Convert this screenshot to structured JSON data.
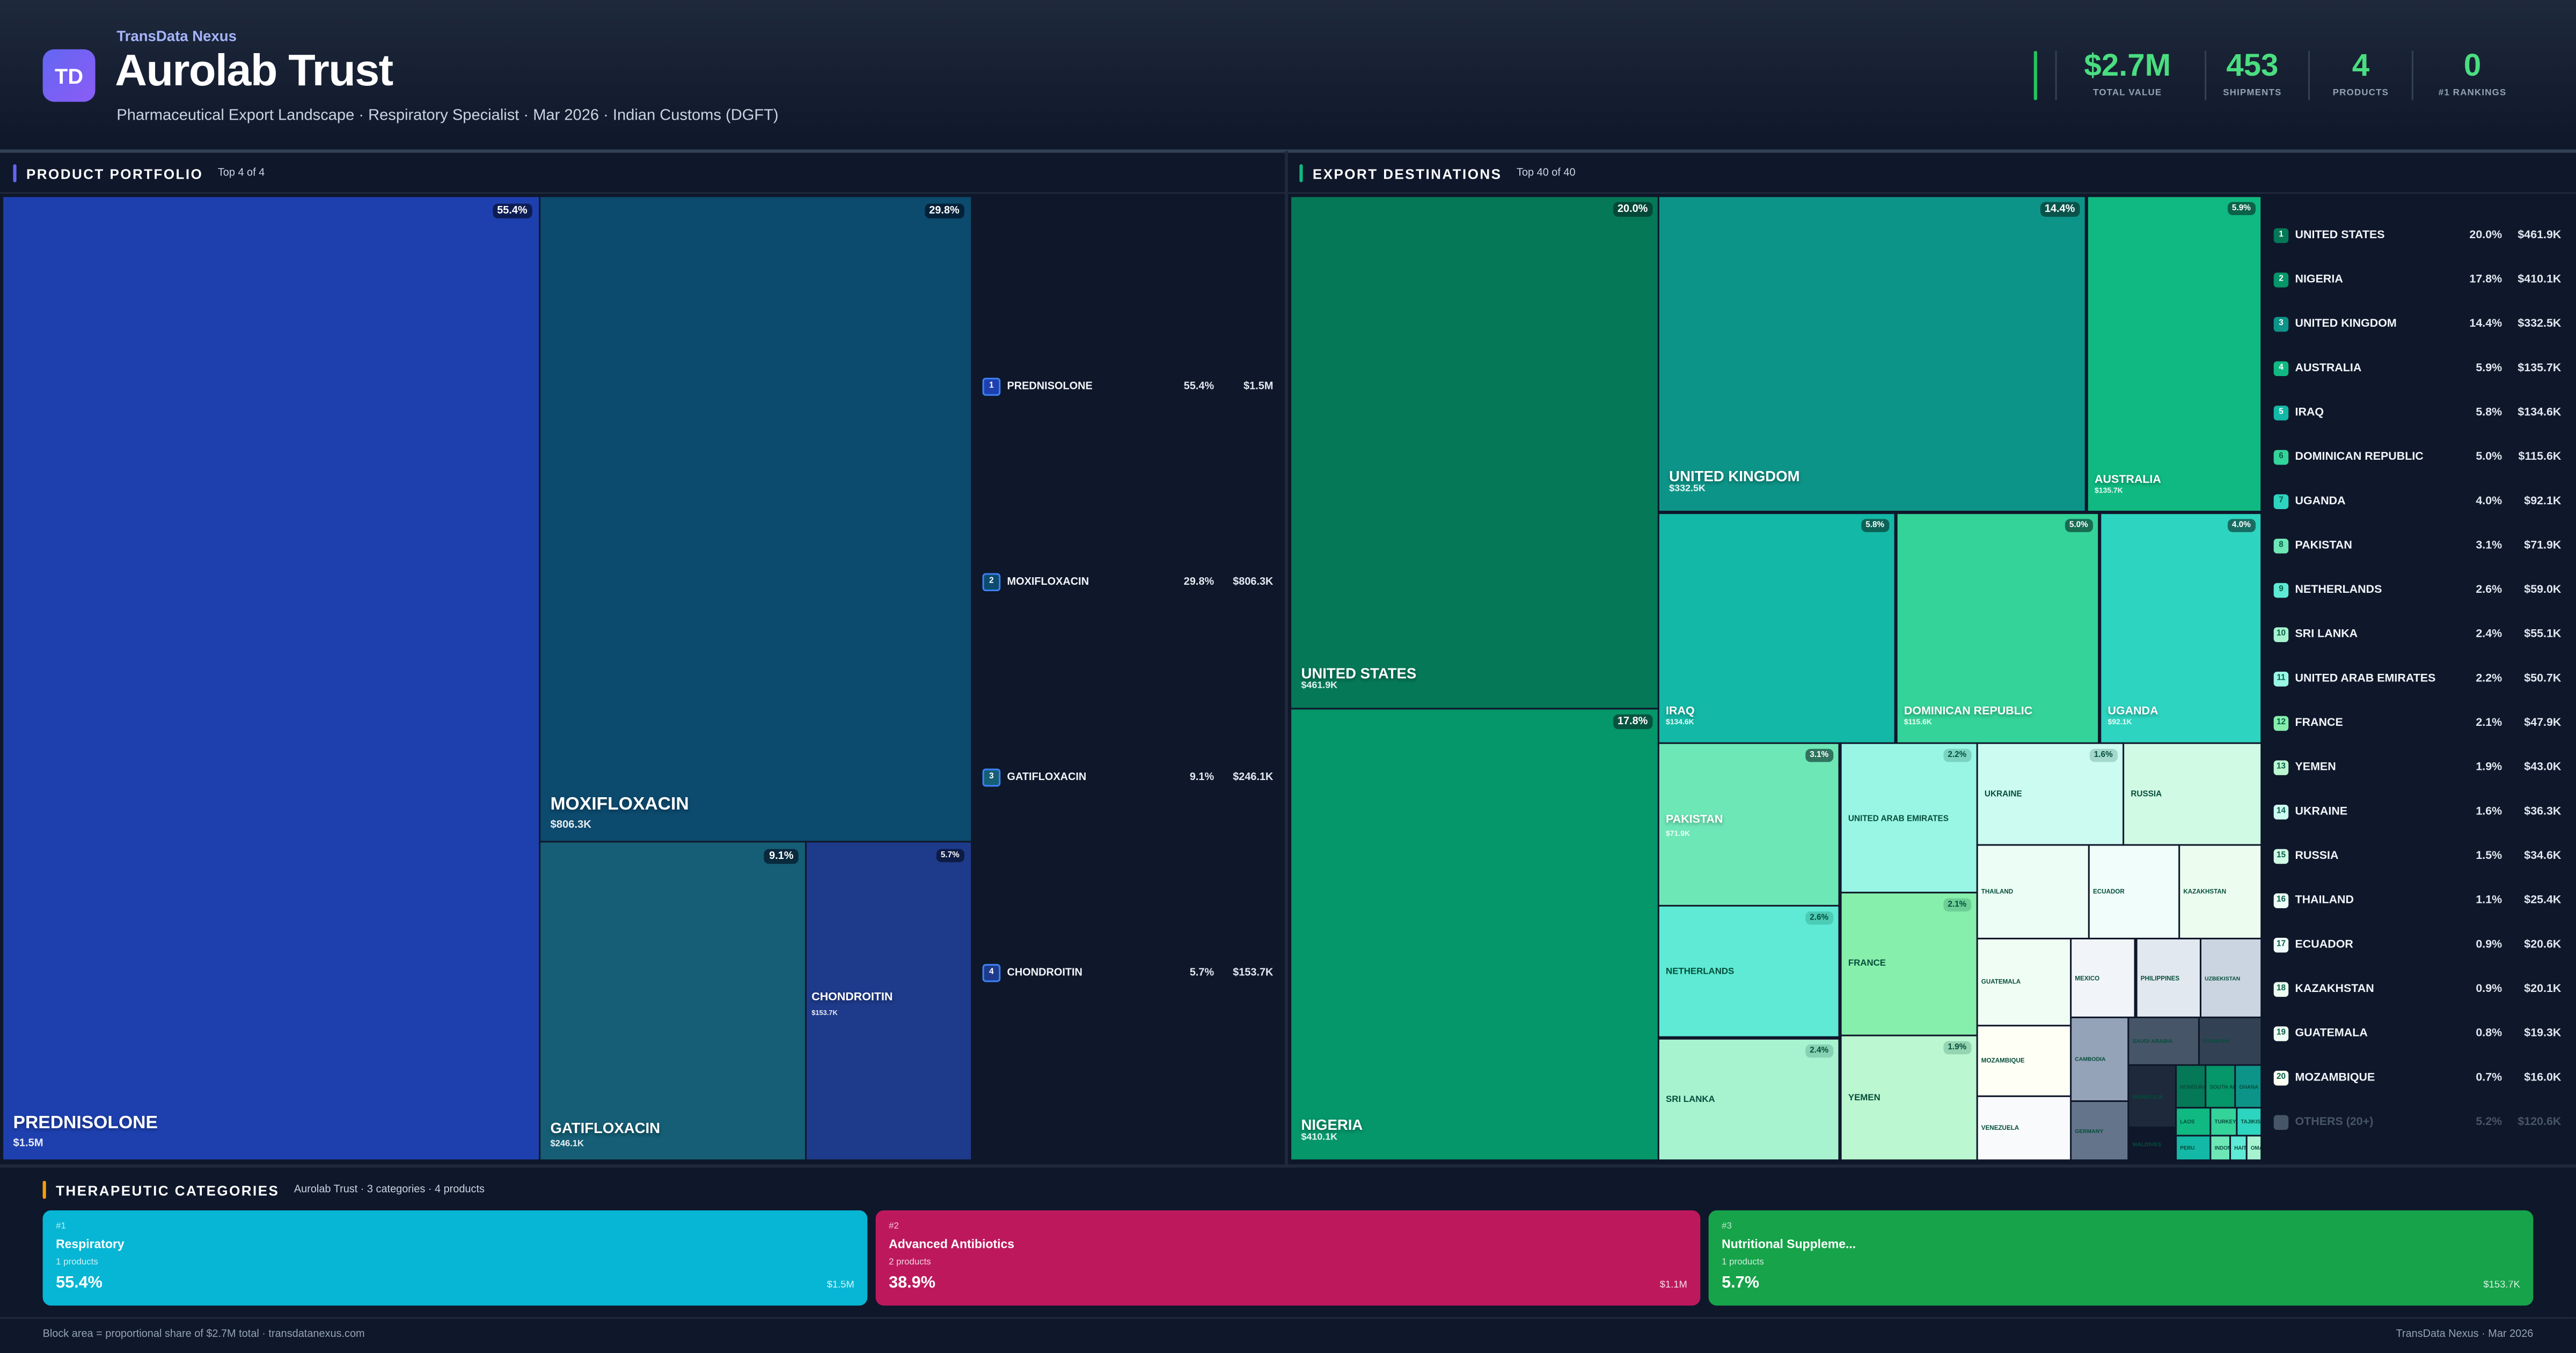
{
  "header": {
    "brand": "TransData Nexus",
    "logo_text": "TD",
    "title": "Aurolab Trust",
    "subtitle": "Pharmaceutical Export Landscape · Respiratory Specialist · Mar 2026 · Indian Customs (DGFT)",
    "stats": [
      {
        "value": "$2.7M",
        "label": "TOTAL VALUE"
      },
      {
        "value": "453",
        "label": "SHIPMENTS"
      },
      {
        "value": "4",
        "label": "PRODUCTS"
      },
      {
        "value": "0",
        "label": "#1 RANKINGS"
      }
    ],
    "accent_color": "#4ade80"
  },
  "products_section": {
    "title": "PRODUCT PORTFOLIO",
    "subtitle": "Top 4 of 4",
    "accent_color": "#6366f1"
  },
  "destinations_section": {
    "title": "EXPORT DESTINATIONS",
    "subtitle": "Top 40 of 40",
    "accent_color": "#10b981"
  },
  "categories_section": {
    "title": "THERAPEUTIC CATEGORIES",
    "subtitle": "Aurolab Trust · 3 categories · 4 products",
    "accent_color": "#f59e0b"
  },
  "chart_data": [
    {
      "type": "treemap",
      "title": "PRODUCT PORTFOLIO",
      "items": [
        {
          "rank": "1",
          "name": "PREDNISOLONE",
          "share": "55.4%",
          "value": "$1.5M",
          "color": "#1e40af"
        },
        {
          "rank": "2",
          "name": "MOXIFLOXACIN",
          "share": "29.8%",
          "value": "$806.3K",
          "color": "#0c4a6e"
        },
        {
          "rank": "3",
          "name": "GATIFLOXACIN",
          "share": "9.1%",
          "value": "$246.1K",
          "color": "#155e75"
        },
        {
          "rank": "4",
          "name": "CHONDROITIN",
          "share": "5.7%",
          "value": "$153.7K",
          "color": "#1e3a8a"
        }
      ]
    },
    {
      "type": "treemap",
      "title": "EXPORT DESTINATIONS",
      "items": [
        {
          "name": "UNITED STATES",
          "share": "20.0%",
          "value": "$461.9K",
          "color": "#047857"
        },
        {
          "name": "NIGERIA",
          "share": "17.8%",
          "value": "$410.1K",
          "color": "#059669"
        },
        {
          "name": "UNITED KINGDOM",
          "share": "14.4%",
          "value": "$332.5K",
          "color": "#0d9488"
        },
        {
          "name": "AUSTRALIA",
          "share": "5.9%",
          "value": "$135.7K",
          "color": "#10b981"
        },
        {
          "name": "IRAQ",
          "share": "5.8%",
          "value": "$134.6K",
          "color": "#14b8a6"
        },
        {
          "name": "DOMINICAN REPUBLIC",
          "share": "5.0%",
          "value": "$115.6K",
          "color": "#34d399"
        },
        {
          "name": "UGANDA",
          "share": "4.0%",
          "value": "$92.1K",
          "color": "#2dd4bf"
        },
        {
          "name": "PAKISTAN",
          "share": "3.1%",
          "value": "$71.9K",
          "color": "#6ee7b7"
        },
        {
          "name": "NETHERLANDS",
          "share": "2.6%",
          "color": "#5eead4"
        },
        {
          "name": "SRI LANKA",
          "share": "2.4%",
          "color": "#a7f3d0"
        },
        {
          "name": "UNITED ARAB EMIRATES",
          "share": "2.2%",
          "color": "#99f6e4"
        },
        {
          "name": "FRANCE",
          "share": "2.1%",
          "color": "#86efac"
        },
        {
          "name": "YEMEN",
          "share": "1.9%",
          "color": "#bbf7d0"
        },
        {
          "name": "UKRAINE",
          "share": "1.6%",
          "color": "#ccfbf1"
        },
        {
          "name": "RUSSIA",
          "color": "#d1fae5"
        },
        {
          "name": "THAILAND",
          "color": "#ecfdf5"
        },
        {
          "name": "ECUADOR",
          "color": "#f0fdfa"
        },
        {
          "name": "KAZAKHSTAN",
          "color": "#ecfdf0"
        },
        {
          "name": "GUATEMALA",
          "color": "#f0fdf4"
        },
        {
          "name": "MOZAMBIQUE",
          "color": "#fefff5"
        },
        {
          "name": "VENEZUELA",
          "color": "#f8fafc"
        },
        {
          "name": "MEXICO",
          "color": "#f1f5f9"
        },
        {
          "name": "PHILIPPINES",
          "color": "#e2e8f0"
        },
        {
          "name": "UZBEKISTAN",
          "color": "#cbd5e1"
        },
        {
          "name": "CAMBODIA",
          "color": "#94a3b8"
        },
        {
          "name": "GERMANY",
          "color": "#64748b"
        },
        {
          "name": "SAUDI ARABIA",
          "color": "#475569"
        },
        {
          "name": "ESWATINI",
          "color": "#334155"
        },
        {
          "name": "MONGOLIA",
          "color": "#1e293b"
        },
        {
          "name": "MALDIVES",
          "color": "#0f172a"
        },
        {
          "name": "HONDURAS",
          "color": "#047857"
        },
        {
          "name": "SOUTH AFRI...",
          "color": "#059669"
        },
        {
          "name": "GHANA",
          "color": "#0d9488"
        },
        {
          "name": "LAOS",
          "color": "#10b981"
        },
        {
          "name": "TURKEY",
          "color": "#34d399"
        },
        {
          "name": "TAJIKISTAN",
          "color": "#2dd4bf"
        },
        {
          "name": "PERU",
          "color": "#14b8a6"
        },
        {
          "name": "INDONESIA",
          "color": "#6ee7b7"
        },
        {
          "name": "HAITI",
          "color": "#5eead4"
        },
        {
          "name": "OMAN",
          "color": "#a7f3d0"
        }
      ]
    }
  ],
  "destination_list": [
    {
      "rank": "1",
      "name": "UNITED STATES",
      "share": "20.0%",
      "value": "$461.9K",
      "color": "#047857"
    },
    {
      "rank": "2",
      "name": "NIGERIA",
      "share": "17.8%",
      "value": "$410.1K",
      "color": "#059669"
    },
    {
      "rank": "3",
      "name": "UNITED KINGDOM",
      "share": "14.4%",
      "value": "$332.5K",
      "color": "#0d9488"
    },
    {
      "rank": "4",
      "name": "AUSTRALIA",
      "share": "5.9%",
      "value": "$135.7K",
      "color": "#10b981"
    },
    {
      "rank": "5",
      "name": "IRAQ",
      "share": "5.8%",
      "value": "$134.6K",
      "color": "#14b8a6"
    },
    {
      "rank": "6",
      "name": "DOMINICAN REPUBLIC",
      "share": "5.0%",
      "value": "$115.6K",
      "color": "#34d399"
    },
    {
      "rank": "7",
      "name": "UGANDA",
      "share": "4.0%",
      "value": "$92.1K",
      "color": "#2dd4bf"
    },
    {
      "rank": "8",
      "name": "PAKISTAN",
      "share": "3.1%",
      "value": "$71.9K",
      "color": "#6ee7b7"
    },
    {
      "rank": "9",
      "name": "NETHERLANDS",
      "share": "2.6%",
      "value": "$59.0K",
      "color": "#5eead4"
    },
    {
      "rank": "10",
      "name": "SRI LANKA",
      "share": "2.4%",
      "value": "$55.1K",
      "color": "#a7f3d0"
    },
    {
      "rank": "11",
      "name": "UNITED ARAB EMIRATES",
      "share": "2.2%",
      "value": "$50.7K",
      "color": "#99f6e4"
    },
    {
      "rank": "12",
      "name": "FRANCE",
      "share": "2.1%",
      "value": "$47.9K",
      "color": "#86efac"
    },
    {
      "rank": "13",
      "name": "YEMEN",
      "share": "1.9%",
      "value": "$43.0K",
      "color": "#bbf7d0"
    },
    {
      "rank": "14",
      "name": "UKRAINE",
      "share": "1.6%",
      "value": "$36.3K",
      "color": "#ccfbf1"
    },
    {
      "rank": "15",
      "name": "RUSSIA",
      "share": "1.5%",
      "value": "$34.6K",
      "color": "#d1fae5"
    },
    {
      "rank": "16",
      "name": "THAILAND",
      "share": "1.1%",
      "value": "$25.4K",
      "color": "#ecfdf5"
    },
    {
      "rank": "17",
      "name": "ECUADOR",
      "share": "0.9%",
      "value": "$20.6K",
      "color": "#f0fdfa"
    },
    {
      "rank": "18",
      "name": "KAZAKHSTAN",
      "share": "0.9%",
      "value": "$20.1K",
      "color": "#ecfdf0"
    },
    {
      "rank": "19",
      "name": "GUATEMALA",
      "share": "0.8%",
      "value": "$19.3K",
      "color": "#f0fdf4"
    },
    {
      "rank": "20",
      "name": "MOZAMBIQUE",
      "share": "0.7%",
      "value": "$16.0K",
      "color": "#fefff5"
    },
    {
      "rank": "",
      "name": "OTHERS (20+)",
      "share": "5.2%",
      "value": "$120.6K",
      "color": "#475569"
    }
  ],
  "categories": [
    {
      "rank": "#1",
      "name": "Respiratory",
      "products": "1 products",
      "share": "55.4%",
      "value": "$1.5M",
      "color": "#06b6d4"
    },
    {
      "rank": "#2",
      "name": "Advanced Antibiotics",
      "products": "2 products",
      "share": "38.9%",
      "value": "$1.1M",
      "color": "#be185d"
    },
    {
      "rank": "#3",
      "name": "Nutritional Suppleme...",
      "products": "1 products",
      "share": "5.7%",
      "value": "$153.7K",
      "color": "#16a34a"
    }
  ],
  "footer": {
    "left": "Block area = proportional share of $2.7M total · transdatanexus.com",
    "right": "TransData Nexus · Mar 2026"
  }
}
